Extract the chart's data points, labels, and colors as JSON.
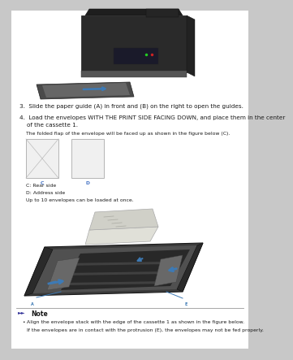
{
  "bg_color": "#c8c8c8",
  "page_bg": "#ffffff",
  "step3_text": "3.  Slide the paper guide (A) in front and (B) on the right to open the guides.",
  "step4_line1": "4.  Load the envelopes WITH THE PRINT SIDE FACING DOWN, and place them in the center",
  "step4_line2": "    of the cassette 1.",
  "step4b_text": "The folded flap of the envelope will be faced up as shown in the figure below (C).",
  "label_c": "C",
  "label_d": "D",
  "c_desc": "C: Rear side",
  "d_desc": "D: Address side",
  "up_to": "Up to 10 envelopes can be loaded at once.",
  "note_title": "Note",
  "note_bullet1": "Align the envelope stack with the edge of the cassette 1 as shown in the figure below.",
  "note_bullet2": "If the envelopes are in contact with the protrusion (E), the envelopes may not be fed properly.",
  "accent_color": "#4472c4",
  "text_color": "#1a1a1a",
  "gray_text": "#444444",
  "note_line_color": "#999999",
  "printer_dark": "#2a2a2a",
  "printer_mid": "#484848",
  "printer_light": "#686868",
  "tray_color": "#555555",
  "cassette_dark": "#333333",
  "cassette_mid": "#555555",
  "cassette_light": "#777777",
  "env_color": "#d8d8d8",
  "env_edge": "#aaaaaa",
  "blue_arrow": "#3d7ab5",
  "fs_body": 5.2,
  "fs_small": 4.4,
  "fs_note": 5.5
}
